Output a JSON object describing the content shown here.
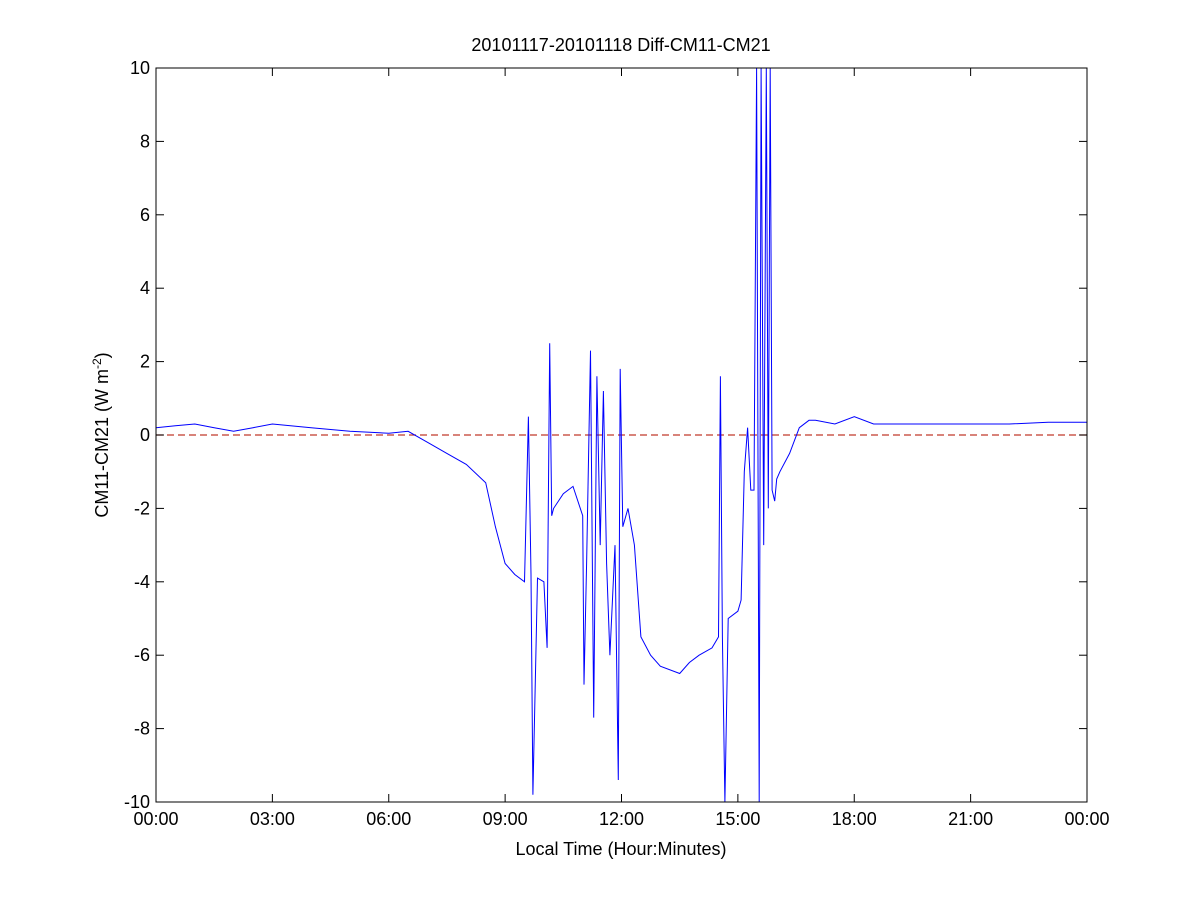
{
  "chart_data": {
    "type": "line",
    "title": "20101117-20101118 Diff-CM11-CM21",
    "xlabel": "Local Time (Hour:Minutes)",
    "ylabel_main": "CM11-CM21 (W m",
    "ylabel_sup": "-2",
    "ylabel_close": ")",
    "xlim": [
      "00:00",
      "24:00"
    ],
    "ylim": [
      -10,
      10
    ],
    "grid": false,
    "xticks": [
      {
        "t": "00:00",
        "label": "00:00"
      },
      {
        "t": "03:00",
        "label": "03:00"
      },
      {
        "t": "06:00",
        "label": "06:00"
      },
      {
        "t": "09:00",
        "label": "09:00"
      },
      {
        "t": "12:00",
        "label": "12:00"
      },
      {
        "t": "15:00",
        "label": "15:00"
      },
      {
        "t": "18:00",
        "label": "18:00"
      },
      {
        "t": "21:00",
        "label": "21:00"
      },
      {
        "t": "24:00",
        "label": "00:00"
      }
    ],
    "yticks": [
      -10,
      -8,
      -6,
      -4,
      -2,
      0,
      2,
      4,
      6,
      8,
      10
    ],
    "series_color": "#0000ff",
    "reference_line": {
      "y": 0,
      "color": "#c0392b",
      "style": "dashed"
    },
    "x": [
      "00:00",
      "00:30",
      "01:00",
      "01:30",
      "02:00",
      "02:30",
      "03:00",
      "04:00",
      "05:00",
      "06:00",
      "06:30",
      "07:00",
      "07:30",
      "08:00",
      "08:30",
      "08:45",
      "09:00",
      "09:15",
      "09:30",
      "09:36",
      "09:40",
      "09:43",
      "09:50",
      "10:00",
      "10:05",
      "10:09",
      "10:12",
      "10:15",
      "10:30",
      "10:45",
      "11:00",
      "11:02",
      "11:06",
      "11:12",
      "11:17",
      "11:22",
      "11:27",
      "11:32",
      "11:37",
      "11:42",
      "11:50",
      "11:55",
      "11:58",
      "12:02",
      "12:10",
      "12:20",
      "12:30",
      "12:45",
      "13:00",
      "13:30",
      "13:45",
      "14:00",
      "14:20",
      "14:30",
      "14:33",
      "14:36",
      "14:40",
      "14:45",
      "15:00",
      "15:05",
      "15:10",
      "15:15",
      "15:20",
      "15:25",
      "15:29",
      "15:33",
      "15:36",
      "15:40",
      "15:44",
      "15:47",
      "15:50",
      "15:53",
      "15:57",
      "16:00",
      "16:05",
      "16:20",
      "16:35",
      "16:50",
      "17:00",
      "17:30",
      "18:00",
      "18:30",
      "19:00",
      "20:00",
      "21:00",
      "22:00",
      "23:00",
      "24:00"
    ],
    "y": [
      0.2,
      0.25,
      0.3,
      0.2,
      0.1,
      0.2,
      0.3,
      0.2,
      0.1,
      0.05,
      0.1,
      -0.2,
      -0.5,
      -0.8,
      -1.3,
      -2.5,
      -3.5,
      -3.8,
      -4.0,
      0.5,
      -3.8,
      -9.8,
      -3.9,
      -4.0,
      -5.8,
      2.5,
      -2.2,
      -2.0,
      -1.6,
      -1.4,
      -2.2,
      -6.8,
      -3.5,
      2.3,
      -7.7,
      1.6,
      -3.0,
      1.2,
      -3.5,
      -6.0,
      -3.0,
      -9.4,
      1.8,
      -2.5,
      -2.0,
      -3.0,
      -5.5,
      -6.0,
      -6.3,
      -6.5,
      -6.2,
      -6.0,
      -5.8,
      -5.5,
      1.6,
      -5.5,
      -10,
      -5.0,
      -4.8,
      -4.5,
      -1.0,
      0.2,
      -1.5,
      -1.5,
      10,
      -10,
      10,
      -3.0,
      10,
      -2.0,
      10,
      -1.5,
      -1.8,
      -1.2,
      -1.0,
      -0.5,
      0.2,
      0.4,
      0.4,
      0.3,
      0.5,
      0.3,
      0.3,
      0.3,
      0.3,
      0.3,
      0.35,
      0.35
    ]
  }
}
